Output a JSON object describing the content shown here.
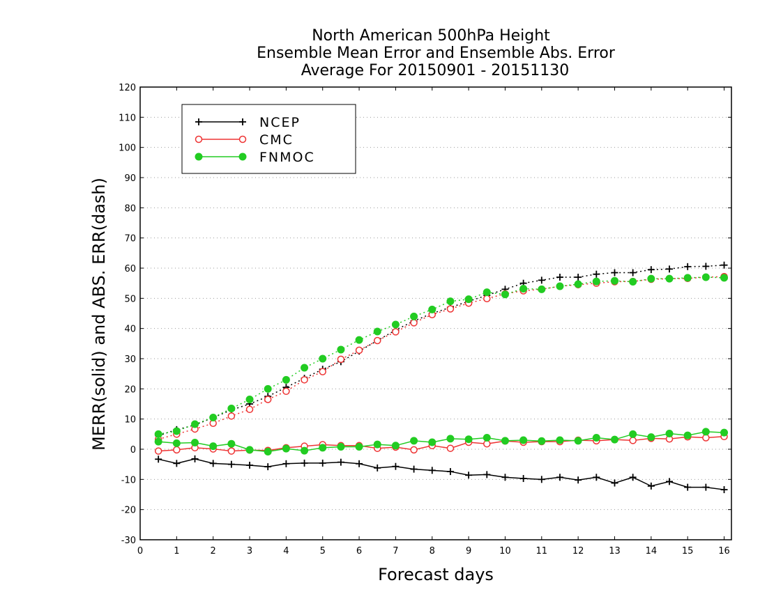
{
  "chart_data": {
    "type": "line",
    "title": [
      "North American 500hPa Height",
      "Ensemble Mean Error and Ensemble Abs. Error",
      "Average For 20150901 - 20151130"
    ],
    "xlabel": "Forecast days",
    "ylabel": "MERR(solid) and ABS. ERR(dash)",
    "xlim": [
      0,
      16.2
    ],
    "ylim": [
      -30,
      120
    ],
    "x_ticks": [
      "0",
      "1",
      "2",
      "3",
      "4",
      "5",
      "6",
      "7",
      "8",
      "9",
      "10",
      "11",
      "12",
      "13",
      "14",
      "15",
      "16"
    ],
    "y_ticks": [
      "-30",
      "-20",
      "-10",
      "0",
      "10",
      "20",
      "30",
      "40",
      "50",
      "60",
      "70",
      "80",
      "90",
      "100",
      "110",
      "120"
    ],
    "grid": "horizontal dotted",
    "legend_position": "top-left",
    "x": [
      0.5,
      1,
      1.5,
      2,
      2.5,
      3,
      3.5,
      4,
      4.5,
      5,
      5.5,
      6,
      6.5,
      7,
      7.5,
      8,
      8.5,
      9,
      9.5,
      10,
      10.5,
      11,
      11.5,
      12,
      12.5,
      13,
      13.5,
      14,
      14.5,
      15,
      15.5,
      16
    ],
    "series": [
      {
        "name": "NCEP",
        "color": "#000000",
        "marker": "plus",
        "mean_error": [
          -3.3,
          -4.7,
          -3.2,
          -4.7,
          -5,
          -5.3,
          -5.8,
          -4.8,
          -4.6,
          -4.6,
          -4.3,
          -4.8,
          -6.2,
          -5.7,
          -6.6,
          -7,
          -7.4,
          -8.6,
          -8.4,
          -9.3,
          -9.7,
          -10,
          -9.3,
          -10.2,
          -9.3,
          -11.2,
          -9.3,
          -12.2,
          -10.7,
          -12.6,
          -12.6,
          -13.4
        ],
        "abs_error": [
          4.5,
          6.5,
          8,
          10.5,
          13,
          15,
          17.5,
          20.5,
          23.5,
          26.5,
          29,
          32.5,
          36,
          39.5,
          42.5,
          45,
          47,
          49,
          51,
          53,
          55,
          56,
          57,
          57,
          58,
          58.5,
          58.5,
          59.5,
          59.7,
          60.5,
          60.6,
          61
        ]
      },
      {
        "name": "CMC",
        "color": "#ee3333",
        "marker": "open-circle",
        "mean_error": [
          -0.6,
          -0.2,
          0.5,
          0.1,
          -0.6,
          -0.3,
          -0.4,
          0.5,
          1,
          1.5,
          1.2,
          1.2,
          0.3,
          0.7,
          -0.2,
          1.2,
          0.3,
          2.3,
          1.8,
          2.7,
          2.3,
          2.5,
          2.5,
          3,
          2.8,
          3.2,
          2.9,
          3.6,
          3.4,
          4.1,
          3.8,
          4.2
        ],
        "abs_error": [
          3.3,
          5,
          6.7,
          8.6,
          11,
          13.2,
          16.5,
          19.2,
          23,
          25.7,
          29.8,
          32.8,
          36,
          38.9,
          41.9,
          44.6,
          46.5,
          48.4,
          49.9,
          51.5,
          52.5,
          53,
          54,
          54.5,
          55,
          55.5,
          55.6,
          56.3,
          56.5,
          56.6,
          57,
          57.2
        ]
      },
      {
        "name": "FNMOC",
        "color": "#22cc22",
        "marker": "filled-circle",
        "mean_error": [
          2.5,
          2,
          2.2,
          1,
          1.8,
          -0.2,
          -0.8,
          0.2,
          -0.5,
          0.5,
          0.8,
          0.8,
          1.6,
          1.2,
          2.8,
          2.3,
          3.5,
          3.3,
          3.8,
          2.8,
          3,
          2.7,
          3,
          2.8,
          3.8,
          3.2,
          5,
          4,
          5.2,
          4.6,
          5.8,
          5.5
        ],
        "abs_error": [
          5,
          6,
          8.3,
          10.5,
          13.5,
          16.5,
          20,
          23,
          27,
          30,
          33,
          36.2,
          39,
          41.3,
          44,
          46.3,
          49,
          49.7,
          52,
          51.3,
          53.2,
          53,
          54,
          54.7,
          55.6,
          55.8,
          55.5,
          56.5,
          56.5,
          56.8,
          57,
          56.8
        ]
      }
    ]
  }
}
